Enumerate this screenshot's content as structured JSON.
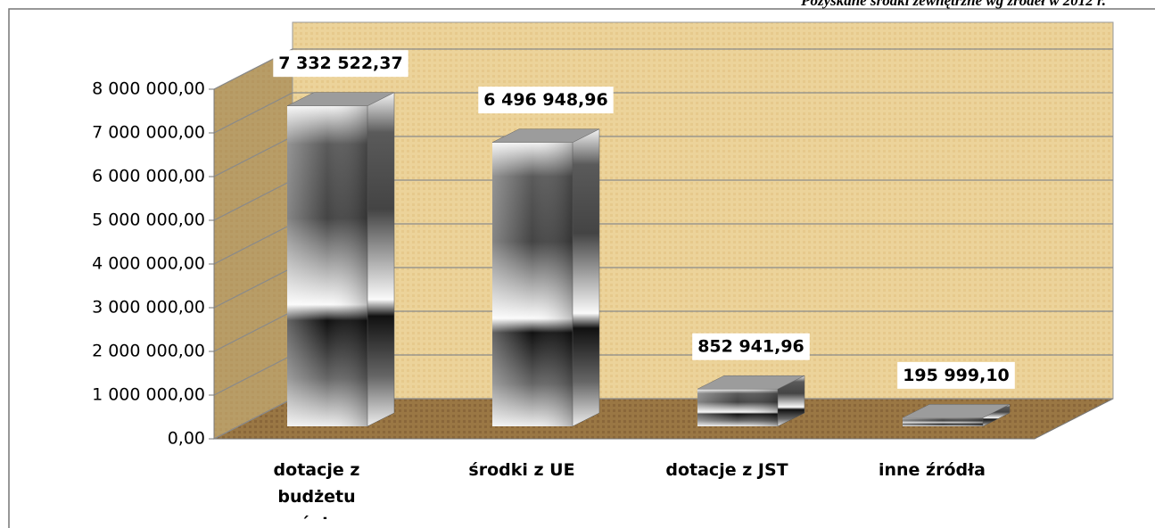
{
  "chart_data": {
    "type": "bar3d",
    "title": "Pozyskane środki zewnętrzne wg źródeł w 2012 r.",
    "categories": [
      "dotacje z budżetu państwa",
      "środki z UE",
      "dotacje z JST",
      "inne źródła"
    ],
    "values": [
      7332522.37,
      6496948.96,
      852941.96,
      195999.1
    ],
    "value_labels": [
      "7 332 522,37",
      "6 496 948,96",
      "852 941,96",
      "195 999,10"
    ],
    "ylim": [
      0,
      8000000
    ],
    "yticks": [
      {
        "value": 0,
        "label": "0,00"
      },
      {
        "value": 1000000,
        "label": "1 000 000,00"
      },
      {
        "value": 2000000,
        "label": "2 000 000,00"
      },
      {
        "value": 3000000,
        "label": "3 000 000,00"
      },
      {
        "value": 4000000,
        "label": "4 000 000,00"
      },
      {
        "value": 5000000,
        "label": "5 000 000,00"
      },
      {
        "value": 6000000,
        "label": "6 000 000,00"
      },
      {
        "value": 7000000,
        "label": "7 000 000,00"
      },
      {
        "value": 8000000,
        "label": "8 000 000,00"
      }
    ],
    "grid": true
  }
}
